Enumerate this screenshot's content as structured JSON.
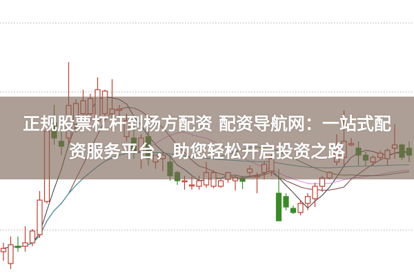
{
  "title_lines": [
    "正规股票杠杆到杨方配资 配资导航网：一站式配",
    "资服务平台，助您轻松开启投资之路"
  ],
  "chart_data": {
    "type": "candlestick",
    "title": "",
    "xlabel": "",
    "ylabel": "",
    "ylim": [
      0,
      100
    ],
    "grid": "horizontal-dotted",
    "grid_levels": [
      16.7,
      66.7,
      91.7
    ],
    "up_color": "#c0392b",
    "down_color": "#3a8a2a",
    "ohlc_fields": [
      "open",
      "close",
      "high",
      "low"
    ],
    "candles": [
      [
        8.8,
        10,
        12,
        5.5
      ],
      [
        4.5,
        11.3,
        14.3,
        2.5
      ],
      [
        10.8,
        10.3,
        14.3,
        8.8
      ],
      [
        10.8,
        12,
        18,
        8.8
      ],
      [
        12,
        16.3,
        17,
        10.8
      ],
      [
        15,
        27.5,
        30.8,
        13.8
      ],
      [
        27,
        52.5,
        53.8,
        26.3
      ],
      [
        55.5,
        50,
        62,
        47.5
      ],
      [
        48.8,
        47,
        52.5,
        43.8
      ],
      [
        50,
        61.8,
        77.5,
        47.5
      ],
      [
        55,
        62.5,
        64,
        52
      ],
      [
        58.8,
        63.5,
        67.5,
        57.5
      ],
      [
        58.8,
        64.3,
        66,
        56
      ],
      [
        56.3,
        67.5,
        72,
        55
      ],
      [
        58.8,
        67,
        67.5,
        56
      ],
      [
        58.8,
        60.5,
        71.3,
        56.3
      ],
      [
        60,
        60.5,
        62,
        58
      ],
      [
        50.5,
        56.3,
        58.8,
        48.8
      ],
      [
        50,
        45,
        55,
        42.5
      ],
      [
        45,
        50,
        51.3,
        38.8
      ],
      [
        50.5,
        42.5,
        53.8,
        40
      ],
      [
        41.3,
        43.8,
        43.8,
        38.8
      ],
      [
        42.5,
        43.8,
        45,
        38
      ],
      [
        41.3,
        36.3,
        43.8,
        34.5
      ],
      [
        37.5,
        34.5,
        38,
        33
      ],
      [
        34.5,
        34.5,
        36.3,
        31.3
      ],
      [
        33,
        33,
        36,
        31.3
      ],
      [
        32.5,
        34.5,
        36.3,
        31.3
      ],
      [
        33,
        37.5,
        41.3,
        32
      ],
      [
        32.5,
        37.5,
        38.3,
        31.8
      ],
      [
        32.5,
        34.5,
        35,
        32
      ],
      [
        35,
        37.5,
        37.5,
        33.8
      ],
      [
        34.5,
        35.8,
        36.3,
        31
      ],
      [
        35.5,
        34.3,
        36.3,
        31.5
      ],
      [
        37.5,
        38.8,
        40,
        36.3
      ],
      [
        36.3,
        36.3,
        37.5,
        30
      ],
      [
        37.5,
        40.5,
        41.3,
        35
      ],
      [
        38,
        42.5,
        44,
        36.3
      ],
      [
        30,
        20,
        38.8,
        28.8
      ],
      [
        28.8,
        25,
        30,
        23.8
      ],
      [
        24.5,
        23,
        25.5,
        22.5
      ],
      [
        23,
        26.3,
        27.5,
        22
      ],
      [
        26.3,
        28.8,
        30,
        23.8
      ],
      [
        28,
        32.5,
        33.8,
        25
      ],
      [
        32.5,
        35.5,
        36.3,
        30.5
      ],
      [
        35.5,
        37.5,
        38,
        35
      ],
      [
        41.3,
        45,
        51.3,
        40
      ],
      [
        43,
        48.8,
        60,
        40
      ],
      [
        47.5,
        48,
        50,
        47
      ],
      [
        46.3,
        43.8,
        48.8,
        40
      ],
      [
        43.8,
        42,
        45,
        40
      ],
      [
        41.3,
        43,
        43.8,
        40
      ],
      [
        43,
        44.5,
        45.5,
        42
      ],
      [
        42.5,
        45.5,
        46.3,
        40
      ],
      [
        46.3,
        47.5,
        55,
        42.5
      ],
      [
        47.5,
        43,
        48,
        42
      ],
      [
        46.3,
        43.8,
        48.8,
        41.3
      ]
    ],
    "moving_averages": [
      {
        "period": 5,
        "color": "#333333"
      },
      {
        "period": 10,
        "color": "#7a3b3b"
      },
      {
        "period": 20,
        "color": "#d77fd7"
      },
      {
        "period": 30,
        "color": "#4a6a2a"
      },
      {
        "period": 60,
        "color": "#2f8fa0"
      }
    ]
  }
}
